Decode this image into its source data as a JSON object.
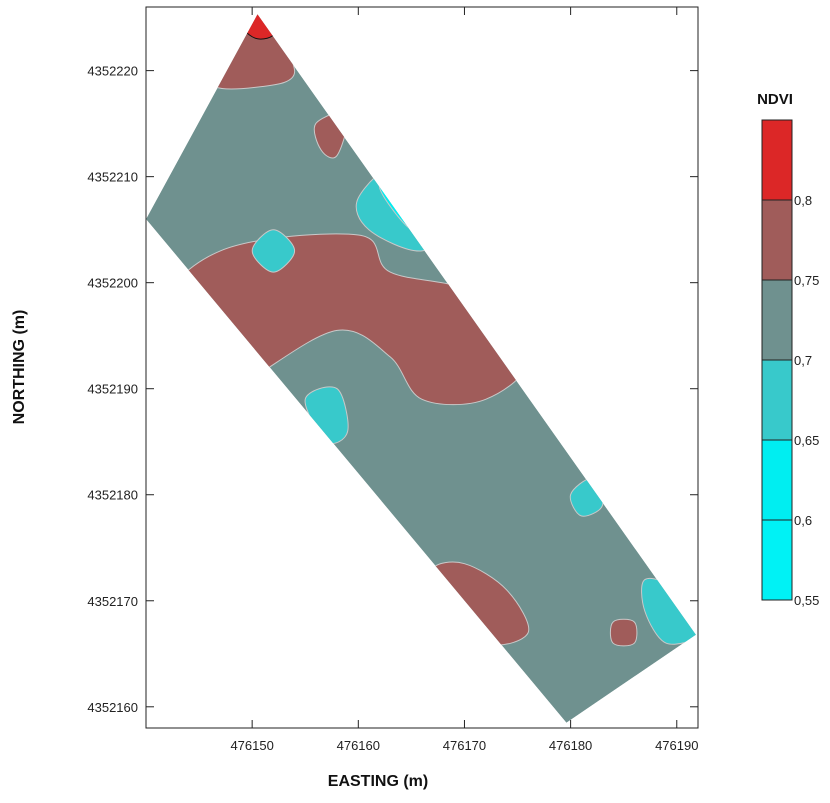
{
  "chart_data": {
    "type": "heatmap",
    "subtype": "filled-contour-map",
    "xlabel": "EASTING (m)",
    "ylabel": "NORTHING (m)",
    "xlim": [
      476140,
      476192
    ],
    "ylim": [
      4352158,
      4352226
    ],
    "xticks": [
      476150,
      476160,
      476170,
      476180,
      476190
    ],
    "yticks": [
      4352160,
      4352170,
      4352180,
      4352190,
      4352200,
      4352210,
      4352220
    ],
    "xtick_labels": [
      "476150",
      "476160",
      "476170",
      "476180",
      "476190"
    ],
    "ytick_labels": [
      "4352160",
      "4352170",
      "4352180",
      "4352190",
      "4352200",
      "4352210",
      "4352220"
    ],
    "grid": false,
    "legend": {
      "title": "NDVI",
      "placement": "right",
      "levels": [
        0.55,
        0.6,
        0.65,
        0.7,
        0.75,
        0.8,
        0.85
      ],
      "level_labels": [
        "0,55",
        "0,6",
        "0,65",
        "0,7",
        "0,75",
        "0,8"
      ],
      "colors": [
        "#00f2f5",
        "#00eef1",
        "#38c9cb",
        "#6f918f",
        "#a05c5a",
        "#dc2727"
      ]
    },
    "field_outline": [
      [
        476150.5,
        4352225.3
      ],
      [
        476191.8,
        4352166.8
      ],
      [
        476179.6,
        4352158.5
      ],
      [
        476140.0,
        4352206.0
      ]
    ],
    "regions": [
      {
        "level": "0,7 - 0,75",
        "color": "#6f918f",
        "shape": "field",
        "points": []
      },
      {
        "level": "0,75 - 0,8",
        "color": "#a05c5a",
        "points": [
          [
            476141,
            4352196.5
          ],
          [
            476147,
            4352203
          ],
          [
            476160,
            4352204.5
          ],
          [
            476163,
            4352201
          ],
          [
            476171,
            4352199
          ],
          [
            476176,
            4352193
          ],
          [
            476172,
            4352189
          ],
          [
            476166,
            4352189
          ],
          [
            476163,
            4352193
          ],
          [
            476158,
            4352195.5
          ],
          [
            476150,
            4352191
          ],
          [
            476145,
            4352188
          ]
        ]
      },
      {
        "level": "0,75 - 0,8",
        "color": "#a05c5a",
        "points": [
          [
            476146,
            4352219
          ],
          [
            476150.5,
            4352225.3
          ],
          [
            476154,
            4352220
          ],
          [
            476151,
            4352218.5
          ]
        ]
      },
      {
        "level": "0,75 - 0,8",
        "color": "#a05c5a",
        "points": [
          [
            476156,
            4352215
          ],
          [
            476159,
            4352216
          ],
          [
            476158,
            4352212
          ],
          [
            476156.5,
            4352212.5
          ]
        ]
      },
      {
        "level": "0,75 - 0,8",
        "color": "#a05c5a",
        "points": [
          [
            476156,
            4352182
          ],
          [
            476158,
            4352181
          ],
          [
            476159,
            4352178
          ],
          [
            476158,
            4352177.5
          ],
          [
            476155.5,
            4352179
          ]
        ]
      },
      {
        "level": "0,75 - 0,8",
        "color": "#a05c5a",
        "points": [
          [
            476167,
            4352173
          ],
          [
            476170,
            4352173.5
          ],
          [
            476174,
            4352171
          ],
          [
            476176,
            4352167
          ],
          [
            476172,
            4352166
          ],
          [
            476168,
            4352170
          ]
        ]
      },
      {
        "level": "0,75 - 0,8",
        "color": "#a05c5a",
        "points": [
          [
            476184,
            4352168
          ],
          [
            476186,
            4352168
          ],
          [
            476186,
            4352166
          ],
          [
            476184,
            4352166
          ]
        ]
      },
      {
        "level": "0,65 - 0,7",
        "color": "#38c9cb",
        "points": [
          [
            476160,
            4352208
          ],
          [
            476164,
            4352211
          ],
          [
            476169,
            4352206
          ],
          [
            476166,
            4352203
          ],
          [
            476161,
            4352205
          ]
        ]
      },
      {
        "level": "0,65 - 0,7",
        "color": "#38c9cb",
        "points": [
          [
            476150,
            4352203
          ],
          [
            476152,
            4352205
          ],
          [
            476154,
            4352203
          ],
          [
            476152,
            4352201
          ]
        ]
      },
      {
        "level": "0,65 - 0,7",
        "color": "#38c9cb",
        "points": [
          [
            476155,
            4352189
          ],
          [
            476158,
            4352190
          ],
          [
            476159,
            4352186
          ],
          [
            476157,
            4352185
          ]
        ]
      },
      {
        "level": "0,65 - 0,7",
        "color": "#38c9cb",
        "points": [
          [
            476180,
            4352180
          ],
          [
            476182,
            4352181.5
          ],
          [
            476183,
            4352179
          ],
          [
            476181,
            4352178
          ]
        ]
      },
      {
        "level": "0,65 - 0,7",
        "color": "#38c9cb",
        "points": [
          [
            476187,
            4352172
          ],
          [
            476190,
            4352171
          ],
          [
            476192,
            4352167
          ],
          [
            476189,
            4352166
          ],
          [
            476187,
            4352169
          ]
        ]
      },
      {
        "level": "0,6 - 0,65",
        "color": "#00eef1",
        "points": [
          [
            476162,
            4352209
          ],
          [
            476164,
            4352210
          ],
          [
            476167,
            4352206
          ],
          [
            476165,
            4352205
          ]
        ]
      }
    ]
  }
}
